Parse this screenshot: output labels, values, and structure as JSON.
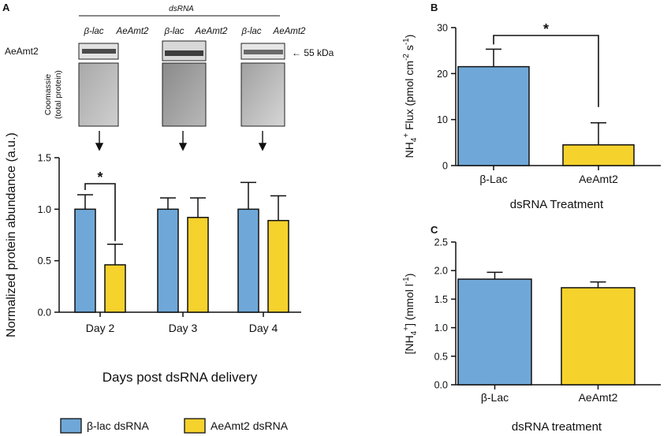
{
  "panels": {
    "a": "A",
    "b": "B",
    "c": "C"
  },
  "blot": {
    "dsrna_label": "dsRNA",
    "protein_label": "AeAmt2",
    "kda_label": "← 55 kDa",
    "stain_label_1": "Coomassie",
    "stain_label_2": "(total protein)",
    "lane_labels": [
      "β-lac",
      "AeAmt2"
    ]
  },
  "legend": {
    "item1": "β-lac dsRNA",
    "item2": "AeAmt2 dsRNA"
  },
  "colors": {
    "blue": "#6fa8d8",
    "yellow": "#f6d22c"
  },
  "chart_data": [
    {
      "id": "A",
      "type": "bar",
      "categories": [
        "Day 2",
        "Day 3",
        "Day 4"
      ],
      "series": [
        {
          "name": "β-lac dsRNA",
          "values": [
            1.0,
            1.0,
            1.0
          ],
          "errors": [
            0.14,
            0.11,
            0.26
          ]
        },
        {
          "name": "AeAmt2 dsRNA",
          "values": [
            0.46,
            0.92,
            0.89
          ],
          "errors": [
            0.2,
            0.19,
            0.24
          ]
        }
      ],
      "ylabel": "Normalized protein abundance (a.u.)",
      "xlabel": "Days post dsRNA delivery",
      "ylim": [
        0,
        1.5
      ],
      "yticks": [
        "0.0",
        "0.5",
        "1.0",
        "1.5"
      ],
      "significance": "*"
    },
    {
      "id": "B",
      "type": "bar",
      "categories": [
        "β-Lac",
        "AeAmt2"
      ],
      "values": [
        21.5,
        4.5
      ],
      "errors": [
        3.8,
        4.8
      ],
      "ylabel": "NH4+ Flux (pmol cm-2 s-1)",
      "ylabel_parts": {
        "pre": "NH",
        "sub": "4",
        "sup": "+",
        "mid": " Flux (pmol cm",
        "sup2": "-2",
        "mid2": " s",
        "sup3": "-1",
        "post": ")"
      },
      "xlabel": "dsRNA Treatment",
      "ylim": [
        0,
        30
      ],
      "yticks": [
        "0",
        "10",
        "20",
        "30"
      ],
      "significance": "*"
    },
    {
      "id": "C",
      "type": "bar",
      "categories": [
        "β-Lac",
        "AeAmt2"
      ],
      "values": [
        1.85,
        1.7
      ],
      "errors": [
        0.12,
        0.1
      ],
      "ylabel": "[NH4+] (mmol l-1)",
      "ylabel_parts": {
        "pre": "[NH",
        "sub": "4",
        "sup": "+",
        "mid": "] (mmol l",
        "sup2": "-1",
        "post": ")"
      },
      "xlabel": "dsRNA treatment",
      "ylim": [
        0,
        2.5
      ],
      "yticks": [
        "0.0",
        "0.5",
        "1.0",
        "1.5",
        "2.0",
        "2.5"
      ]
    }
  ]
}
